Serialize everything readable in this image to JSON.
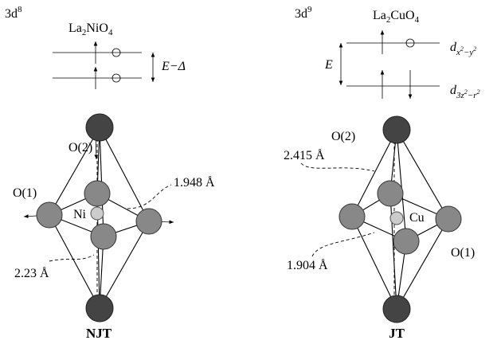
{
  "left": {
    "config": {
      "base": "3d",
      "sup": "8"
    },
    "compound": [
      "La",
      "2",
      "NiO",
      "4"
    ],
    "gap_label": "E−Δ",
    "apical": "O(2)",
    "planar": "O(1)",
    "center": "Ni",
    "distance_planar": "1.948 Å",
    "distance_apical": "2.23 Å",
    "label": "NJT"
  },
  "right": {
    "config": {
      "base": "3d",
      "sup": "9"
    },
    "compound": [
      "La",
      "2",
      "CuO",
      "4"
    ],
    "gap_label": "E",
    "orbital_upper": [
      "d",
      "x",
      "2",
      "−y",
      "2"
    ],
    "orbital_lower": [
      "d",
      "3z",
      "2",
      "−r",
      "2"
    ],
    "apical": "O(2)",
    "planar": "O(1)",
    "center": "Cu",
    "distance_apical": "2.415 Å",
    "distance_planar": "1.904 Å",
    "label": "JT"
  }
}
